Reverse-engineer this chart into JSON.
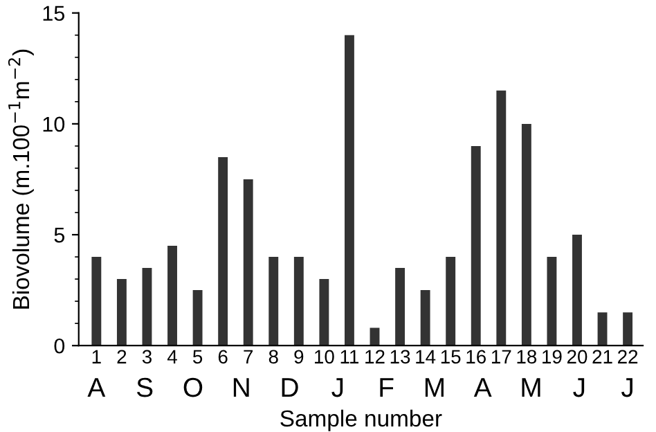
{
  "chart_data": {
    "type": "bar",
    "xlabel": "Sample number",
    "ylabel": "Biovolume (m.100$^{−1}$m$^{−2}$)",
    "categories": [
      "1",
      "2",
      "3",
      "4",
      "5",
      "6",
      "7",
      "8",
      "9",
      "10",
      "11",
      "12",
      "13",
      "14",
      "15",
      "16",
      "17",
      "18",
      "19",
      "20",
      "21",
      "22"
    ],
    "values": [
      4,
      3,
      3.5,
      4.5,
      2.5,
      8.5,
      7.5,
      4,
      4,
      3,
      14,
      0.8,
      3.5,
      2.5,
      4,
      9,
      11.5,
      10,
      4,
      5,
      1.5,
      1.5
    ],
    "color": "#333333",
    "ylim": [
      0,
      15
    ],
    "yticks": [
      0,
      5,
      10,
      15
    ],
    "annotations": [
      "A",
      "S",
      "O",
      "N",
      "D",
      "J",
      "F",
      "M",
      "A",
      "M",
      "J",
      "J"
    ],
    "grid": false,
    "legend": false
  }
}
